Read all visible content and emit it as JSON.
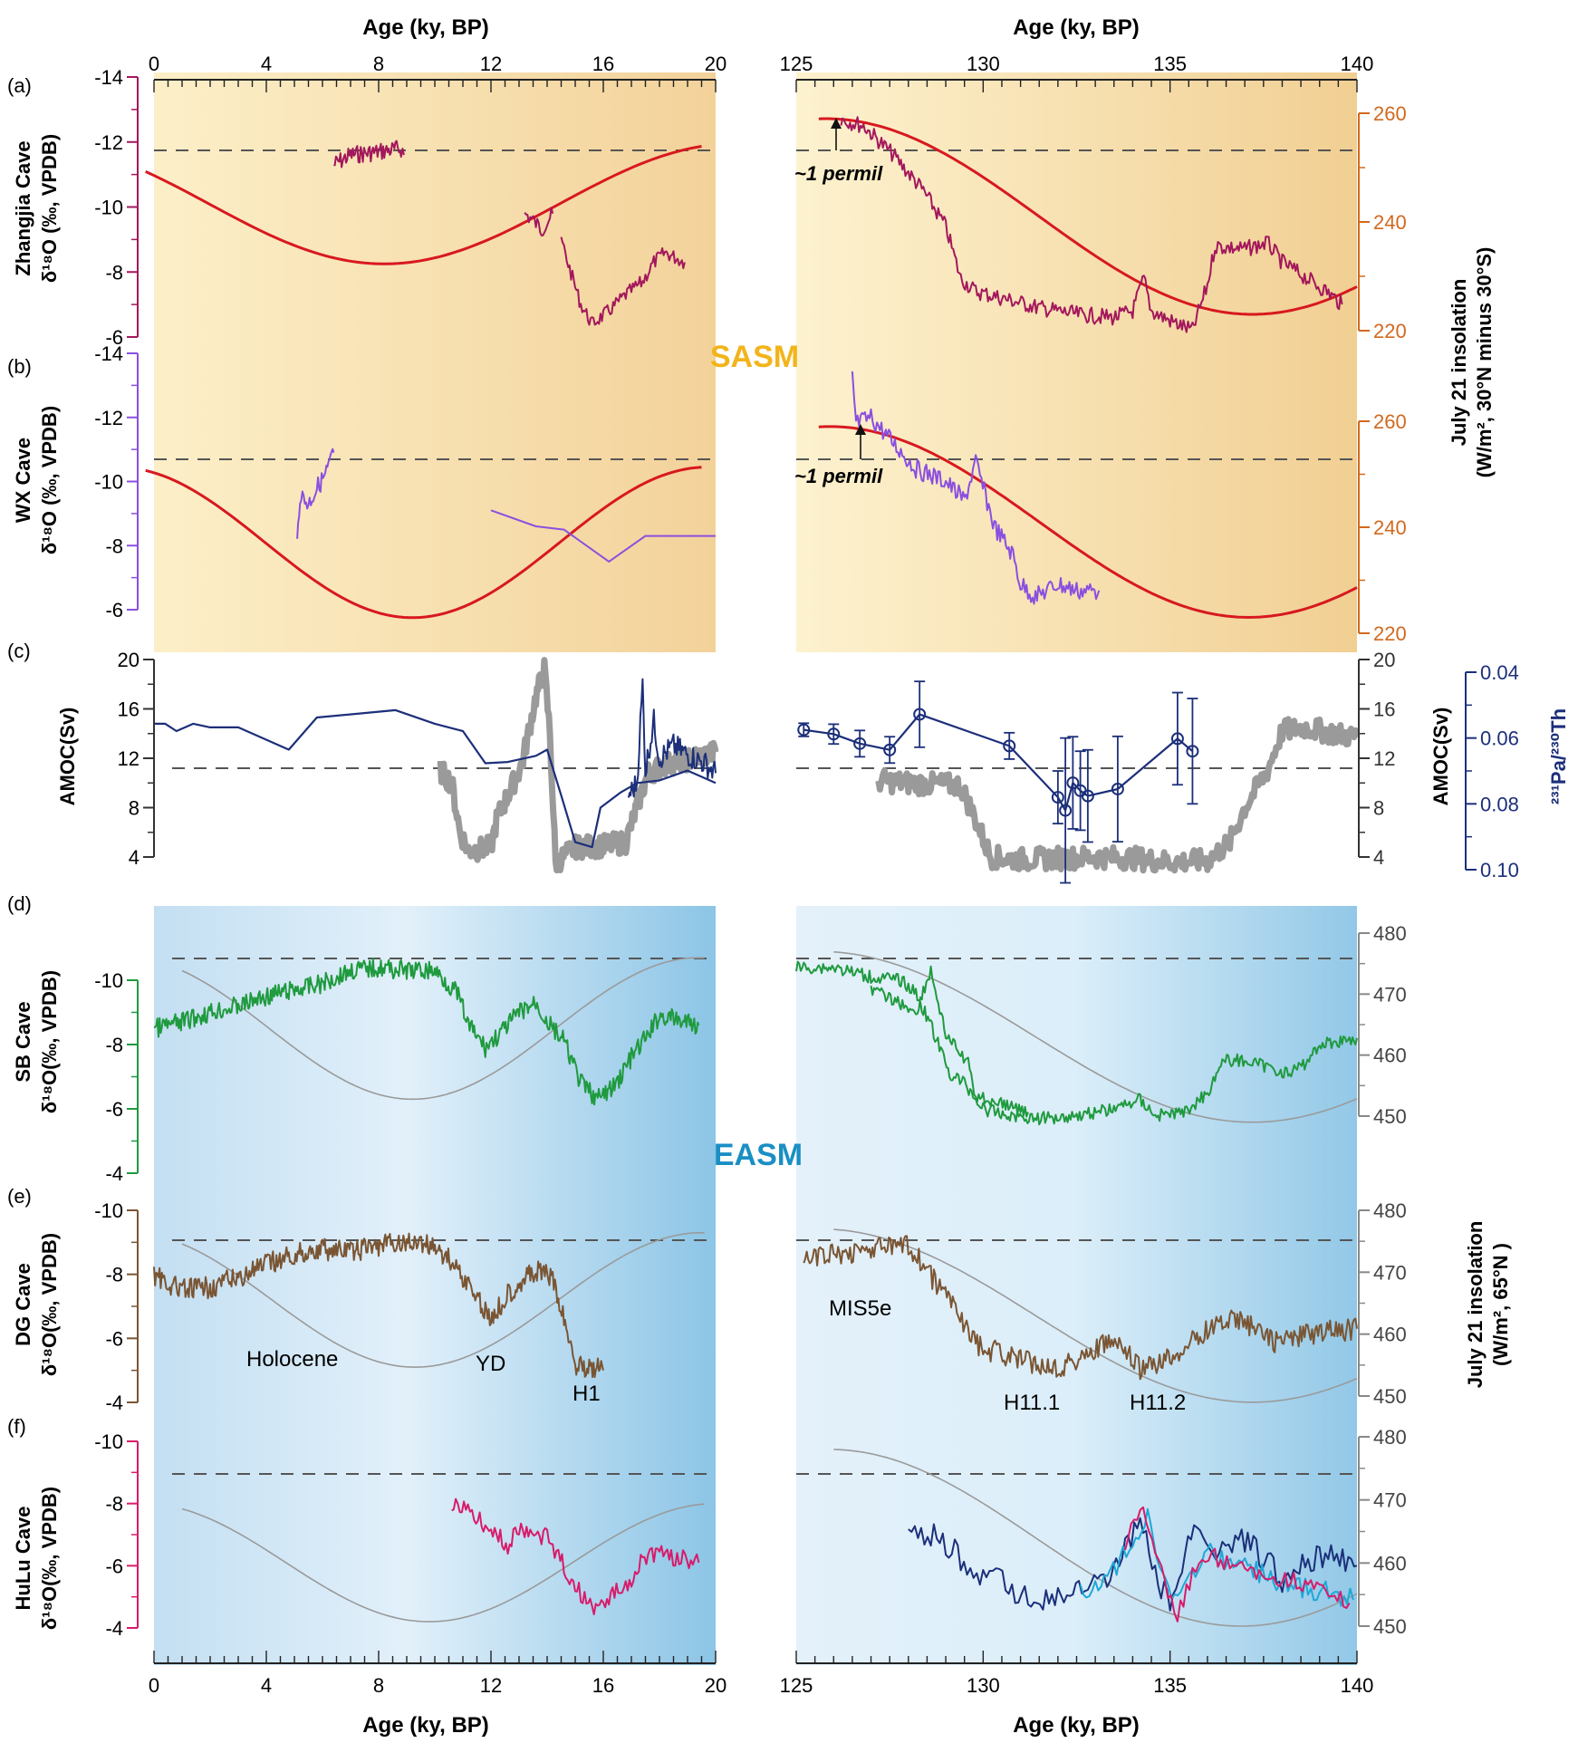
{
  "chart_data": {
    "type": "line",
    "top_axis_label": "Age (ky, BP)",
    "bottom_axis_label": "Age (ky, BP)",
    "left_x": {
      "range": [
        0,
        20
      ],
      "ticks": [
        "0",
        "4",
        "8",
        "12",
        "16",
        "20"
      ]
    },
    "right_x": {
      "range": [
        125,
        140
      ],
      "ticks": [
        "125",
        "130",
        "135",
        "140"
      ]
    },
    "region_labels": {
      "sasm": "SASM",
      "easm": "EASM"
    },
    "colors": {
      "zhangjia": "#a3175c",
      "wx": "#8a4fe0",
      "red": "#d8181f",
      "amoc": "#9a9a9a",
      "pa": "#1c2f7a",
      "sb": "#1f9a3e",
      "dg": "#7a5533",
      "hulu": "#d81b6a",
      "hulu_cyan": "#1ea8d6",
      "gray_ins": "#9a9a9a",
      "orange_axis": "#d2691e"
    },
    "panels": [
      {
        "id": "a",
        "tag": "(a)",
        "ylabel1": "Zhangjia Cave",
        "ylabel2": "δ¹⁸O (‰, VPDB)",
        "yticks": [
          "-14",
          "-12",
          "-10",
          "-8",
          "-6"
        ],
        "yrange": [
          -14,
          -6
        ]
      },
      {
        "id": "b",
        "tag": "(b)",
        "ylabel1": "WX Cave",
        "ylabel2": "δ¹⁸O (‰, VPDB)",
        "yticks": [
          "-14",
          "-12",
          "-10",
          "-8",
          "-6"
        ],
        "yrange": [
          -14,
          -6
        ]
      },
      {
        "id": "c",
        "tag": "(c)",
        "ylabel1": "AMOC(Sv)",
        "ylabel2": "",
        "yticks": [
          "20",
          "16",
          "12",
          "8",
          "4"
        ],
        "yrange": [
          4,
          20
        ]
      },
      {
        "id": "d",
        "tag": "(d)",
        "ylabel1": "SB Cave",
        "ylabel2": "δ¹⁸O(‰, VPDB)",
        "yticks": [
          "-10",
          "-8",
          "-6",
          "-4"
        ],
        "yrange": [
          -11,
          -4
        ]
      },
      {
        "id": "e",
        "tag": "(e)",
        "ylabel1": "DG Cave",
        "ylabel2": "δ¹⁸O(‰, VPDB)",
        "yticks": [
          "-10",
          "-8",
          "-6",
          "-4"
        ],
        "yrange": [
          -10,
          -4
        ]
      },
      {
        "id": "f",
        "tag": "(f)",
        "ylabel1": "HuLu Cave",
        "ylabel2": "δ¹⁸O(‰, VPDB)",
        "yticks": [
          "-10",
          "-8",
          "-6",
          "-4"
        ],
        "yrange": [
          -10,
          -4
        ]
      }
    ],
    "right_axes": {
      "sasm_insolation_ab": {
        "label1": "July 21 insolation",
        "label2": "(W/m², 30°N minus 30°S)",
        "ticks_a": [
          "260",
          "240",
          "220"
        ],
        "ticks_b": [
          "260",
          "240",
          "220"
        ]
      },
      "amoc_right": {
        "label": "AMOC(Sv)",
        "ticks": [
          "20",
          "16",
          "12",
          "8",
          "4"
        ]
      },
      "pa_th": {
        "label": "²³¹Pa/²³⁰Th",
        "ticks": [
          "0.04",
          "0.06",
          "0.08",
          "0.10"
        ],
        "range": [
          0.04,
          0.1
        ]
      },
      "easm_insolation": {
        "label1": "July 21 insolation",
        "label2": "(W/m², 65°N )",
        "ticks": [
          "480",
          "470",
          "460",
          "450"
        ]
      }
    },
    "annotations": {
      "permil_a": "~1 permil",
      "permil_b": "~1 permil",
      "holocene": "Holocene",
      "yd": "YD",
      "h1": "H1",
      "mis5e": "MIS5e",
      "h11_1": "H11.1",
      "h11_2": "H11.2"
    },
    "series": {
      "pa_th_points": [
        [
          125.2,
          0.0575
        ],
        [
          126.0,
          0.0588
        ],
        [
          126.7,
          0.0617
        ],
        [
          127.5,
          0.0636
        ],
        [
          128.3,
          0.0528
        ],
        [
          130.7,
          0.0624
        ],
        [
          132.0,
          0.078
        ],
        [
          132.2,
          0.082
        ],
        [
          132.4,
          0.0736
        ],
        [
          132.6,
          0.076
        ],
        [
          132.8,
          0.0776
        ],
        [
          133.6,
          0.0755
        ],
        [
          135.2,
          0.0602
        ],
        [
          135.6,
          0.064
        ]
      ],
      "pa_th_errors": [
        0.002,
        0.003,
        0.004,
        0.004,
        0.01,
        0.004,
        0.008,
        0.022,
        0.014,
        0.012,
        0.014,
        0.016,
        0.014,
        0.016
      ],
      "amoc_left_line": [
        [
          0,
          14.8
        ],
        [
          0.4,
          14.8
        ],
        [
          0.8,
          14.2
        ],
        [
          1.4,
          14.8
        ],
        [
          2.0,
          14.5
        ],
        [
          3.0,
          14.5
        ],
        [
          4.8,
          12.7
        ],
        [
          5.8,
          15.3
        ],
        [
          8.6,
          15.9
        ],
        [
          10.0,
          14.8
        ],
        [
          11.0,
          14.2
        ],
        [
          11.8,
          11.6
        ],
        [
          12.6,
          11.7
        ],
        [
          13.6,
          12.2
        ],
        [
          14.0,
          12.7
        ],
        [
          14.5,
          9.0
        ],
        [
          15.0,
          5.2
        ],
        [
          15.6,
          4.8
        ],
        [
          15.9,
          8.0
        ],
        [
          16.6,
          9.2
        ],
        [
          17.2,
          10.0
        ],
        [
          18.0,
          10.2
        ],
        [
          19.0,
          11.0
        ],
        [
          20.0,
          10.0
        ]
      ],
      "insolation_a_extremes": {
        "max_age": 8.2,
        "max_value": 255,
        "range_note": "insolation sinusoid 30N-30S"
      }
    }
  }
}
